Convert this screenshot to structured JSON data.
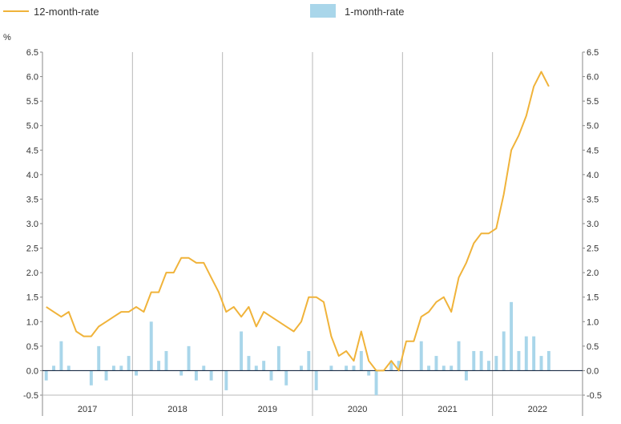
{
  "chart_data": {
    "type": "bar",
    "unit_label": "%",
    "ylim": [
      -0.5,
      6.5
    ],
    "y_ticks": [
      "-0.5",
      "0.0",
      "0.5",
      "1.0",
      "1.5",
      "2.0",
      "2.5",
      "3.0",
      "3.5",
      "4.0",
      "4.5",
      "5.0",
      "5.5",
      "6.0",
      "6.5"
    ],
    "y_tick_values": [
      -0.5,
      0,
      0.5,
      1,
      1.5,
      2,
      2.5,
      3,
      3.5,
      4,
      4.5,
      5,
      5.5,
      6,
      6.5
    ],
    "years": [
      "2017",
      "2018",
      "2019",
      "2020",
      "2021",
      "2022"
    ],
    "start_year": 2017,
    "months_per_year": 12,
    "grid": "vertical year separators",
    "legend_position": "top",
    "series": [
      {
        "name": "12-month-rate",
        "type": "line",
        "color": "#f0b33a",
        "values": [
          1.3,
          1.2,
          1.1,
          1.2,
          0.8,
          0.7,
          0.7,
          0.9,
          1.0,
          1.1,
          1.2,
          1.2,
          1.3,
          1.2,
          1.6,
          1.6,
          2.0,
          2.0,
          2.3,
          2.3,
          2.2,
          2.2,
          1.9,
          1.6,
          1.2,
          1.3,
          1.1,
          1.3,
          0.9,
          1.2,
          1.1,
          1.0,
          0.9,
          0.8,
          1.0,
          1.5,
          1.5,
          1.4,
          0.7,
          0.3,
          0.4,
          0.2,
          0.8,
          0.2,
          0.0,
          0.0,
          0.2,
          0.0,
          0.6,
          0.6,
          1.1,
          1.2,
          1.4,
          1.5,
          1.2,
          1.9,
          2.2,
          2.6,
          2.8,
          2.8,
          2.9,
          3.6,
          4.5,
          4.8,
          5.2,
          5.8,
          6.1,
          5.8
        ]
      },
      {
        "name": "1-month-rate",
        "type": "bar",
        "color": "#a9d6ea",
        "values": [
          -0.2,
          0.1,
          0.6,
          0.1,
          0.0,
          0.0,
          -0.3,
          0.5,
          -0.2,
          0.1,
          0.1,
          0.3,
          -0.1,
          0.0,
          1.0,
          0.2,
          0.4,
          0.0,
          -0.1,
          0.5,
          -0.2,
          0.1,
          -0.2,
          0.0,
          -0.4,
          0.0,
          0.8,
          0.3,
          0.1,
          0.2,
          -0.2,
          0.5,
          -0.3,
          0.0,
          0.1,
          0.4,
          -0.4,
          0.0,
          0.1,
          0.0,
          0.1,
          0.1,
          0.4,
          -0.1,
          -0.5,
          0.0,
          0.2,
          0.2,
          0.0,
          0.0,
          0.6,
          0.1,
          0.3,
          0.1,
          0.1,
          0.6,
          -0.2,
          0.4,
          0.4,
          0.2,
          0.3,
          0.8,
          1.4,
          0.4,
          0.7,
          0.7,
          0.3,
          0.4
        ]
      }
    ]
  }
}
